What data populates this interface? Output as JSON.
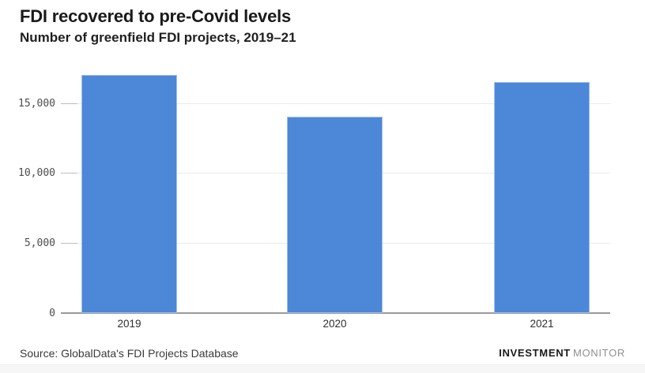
{
  "header": {
    "title": "FDI recovered to pre-Covid levels",
    "subtitle": "Number of greenfield FDI projects, 2019–21"
  },
  "chart_data": {
    "type": "bar",
    "title": "FDI recovered to pre-Covid levels",
    "subtitle": "Number of greenfield FDI projects, 2019–21",
    "categories": [
      "2019",
      "2020",
      "2021"
    ],
    "values": [
      17000,
      14000,
      16500
    ],
    "xlabel": "",
    "ylabel": "",
    "ylim": [
      0,
      17500
    ],
    "yticks": [
      {
        "value": 0,
        "label": "0"
      },
      {
        "value": 5000,
        "label": "5,000"
      },
      {
        "value": 10000,
        "label": "10,000"
      },
      {
        "value": 15000,
        "label": "15,000"
      }
    ],
    "grid": true,
    "legend": false,
    "bar_color": "#4d87d8",
    "bar_border_color": "#9fc1eb"
  },
  "footer": {
    "source": "Source: GlobalData's FDI Projects Database",
    "brand_primary": "INVESTMENT",
    "brand_secondary": "MONITOR"
  }
}
